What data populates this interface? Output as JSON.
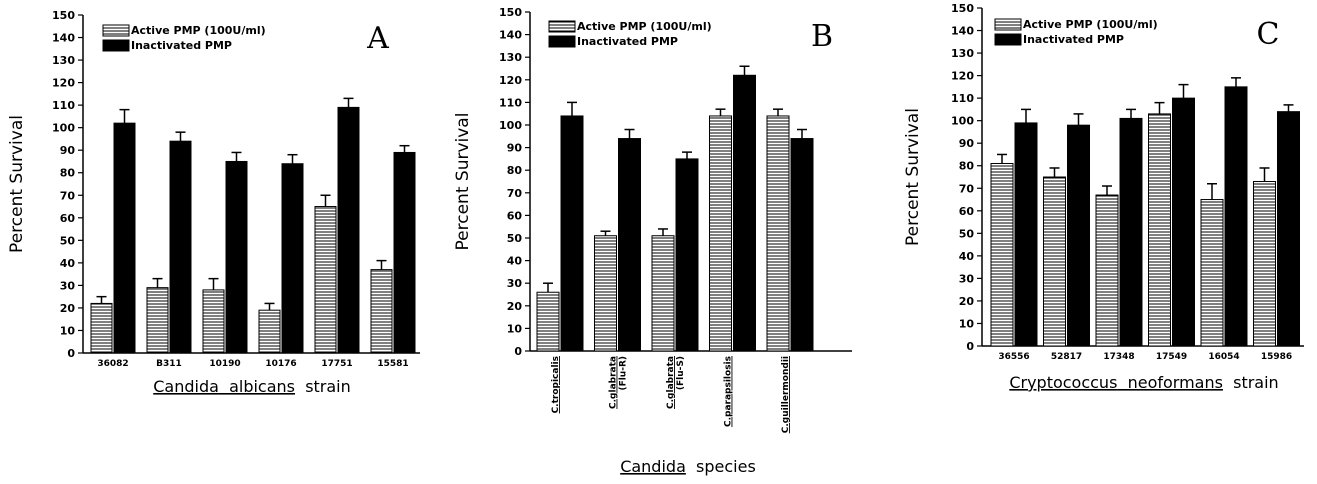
{
  "chart_data": [
    {
      "type": "bar",
      "panel": "A",
      "ylabel": "Percent Survival",
      "xlabel_parts": [
        {
          "text": "Candida",
          "underline": true
        },
        {
          "text": "albicans",
          "underline": true
        },
        {
          "text": "strain",
          "underline": false
        }
      ],
      "categories": [
        "36082",
        "B311",
        "10190",
        "10176",
        "17751",
        "15581"
      ],
      "series": [
        {
          "name": "Active PMP (100U/ml)",
          "pattern": "hatch",
          "values": [
            22,
            29,
            28,
            19,
            65,
            37
          ],
          "errors": [
            3,
            4,
            5,
            3,
            5,
            4
          ]
        },
        {
          "name": "Inactivated PMP",
          "pattern": "solid",
          "values": [
            102,
            94,
            85,
            84,
            109,
            89
          ],
          "errors": [
            6,
            4,
            4,
            4,
            4,
            3
          ]
        }
      ],
      "ylim": [
        0,
        150
      ],
      "yticks": [
        "0",
        "10",
        "20",
        "30",
        "40",
        "50",
        "60",
        "70",
        "80",
        "90",
        "100",
        "110",
        "120",
        "130",
        "140",
        "150"
      ],
      "legend": "top-left"
    },
    {
      "type": "bar",
      "panel": "B",
      "ylabel": "Percent Survival",
      "xlabel_parts": [
        {
          "text": "Candida",
          "underline": true
        },
        {
          "text": "species",
          "underline": false
        }
      ],
      "categories": [
        {
          "line1": "C.tropicalis",
          "line2": ""
        },
        {
          "line1": "C.glabrata",
          "line2": "(Flu-R)"
        },
        {
          "line1": "C.glabrata",
          "line2": "(Flu-S)"
        },
        {
          "line1": "C.parapsilosis",
          "line2": ""
        },
        {
          "line1": "C.guillermondii",
          "line2": ""
        }
      ],
      "series": [
        {
          "name": "Active PMP (100U/ml)",
          "pattern": "hatch",
          "values": [
            26,
            51,
            51,
            104,
            104
          ],
          "errors": [
            4,
            2,
            3,
            3,
            3
          ]
        },
        {
          "name": "Inactivated PMP",
          "pattern": "solid",
          "values": [
            104,
            94,
            85,
            122,
            94
          ],
          "errors": [
            6,
            4,
            3,
            4,
            4
          ]
        }
      ],
      "ylim": [
        0,
        150
      ],
      "yticks": [
        "0",
        "10",
        "20",
        "30",
        "40",
        "50",
        "60",
        "70",
        "80",
        "90",
        "100",
        "110",
        "120",
        "130",
        "140",
        "150"
      ],
      "legend": "top-left"
    },
    {
      "type": "bar",
      "panel": "C",
      "ylabel": "Percent Survival",
      "xlabel_parts": [
        {
          "text": "Cryptococcus",
          "underline": true
        },
        {
          "text": "neoformans",
          "underline": true
        },
        {
          "text": "strain",
          "underline": false
        }
      ],
      "categories": [
        "36556",
        "52817",
        "17348",
        "17549",
        "16054",
        "15986"
      ],
      "series": [
        {
          "name": "Active PMP (100U/ml)",
          "pattern": "hatch",
          "values": [
            81,
            75,
            67,
            103,
            65,
            73
          ],
          "errors": [
            4,
            4,
            4,
            5,
            7,
            6
          ]
        },
        {
          "name": "Inactivated PMP",
          "pattern": "solid",
          "values": [
            99,
            98,
            101,
            110,
            115,
            104
          ],
          "errors": [
            6,
            5,
            4,
            6,
            4,
            3
          ]
        }
      ],
      "ylim": [
        0,
        150
      ],
      "yticks": [
        "0",
        "10",
        "20",
        "30",
        "40",
        "50",
        "60",
        "70",
        "80",
        "90",
        "100",
        "110",
        "120",
        "130",
        "140",
        "150"
      ],
      "legend": "top-left"
    }
  ]
}
